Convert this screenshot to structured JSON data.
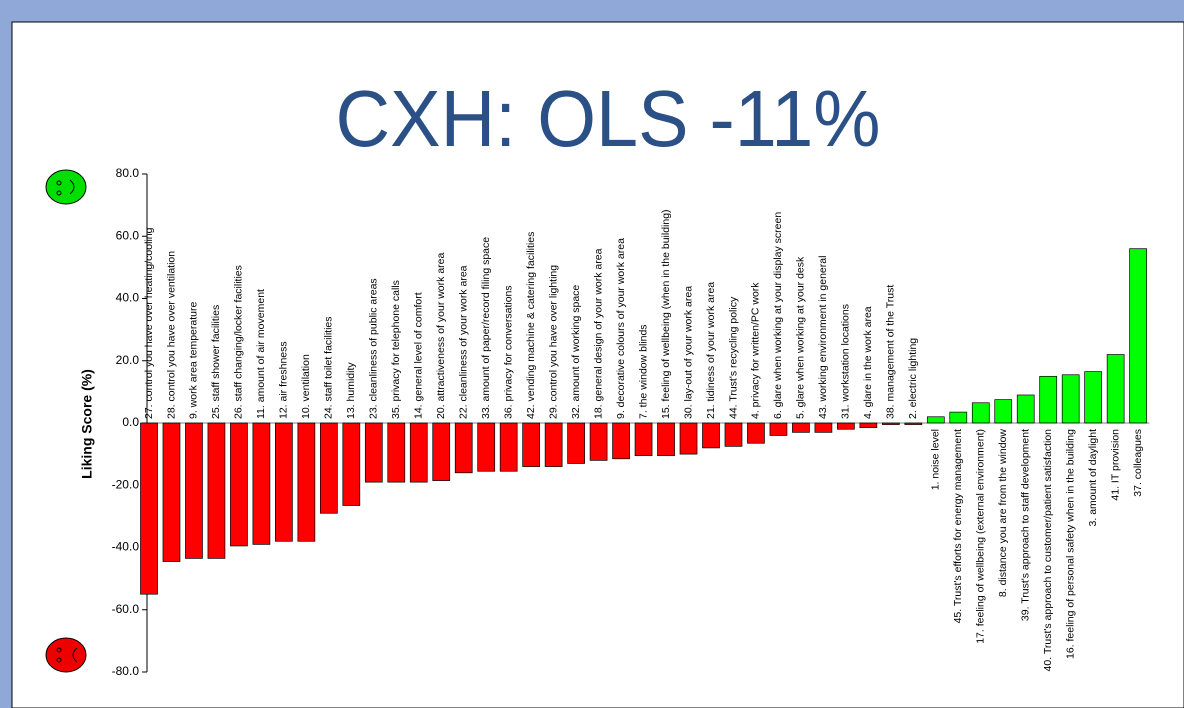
{
  "chart_data": {
    "type": "bar",
    "title": "CXH: OLS -11%",
    "ylabel": "Liking Score (%)",
    "categories": [
      "27. control you have over heating/cooling",
      "28. control you have over ventilation",
      "9. work area temperature",
      "25. staff shower facilities",
      "26. staff changing/locker facilities",
      "11. amount of air movement",
      "12. air freshness",
      "10. ventilation",
      "24. staff toilet facilities",
      "13. humidity",
      "23. cleanliness of public areas",
      "35. privacy for telephone calls",
      "14. general level of comfort",
      "20. attractiveness of your work area",
      "22. cleanliness of your work area",
      "33. amount of paper/record filing space",
      "36. privacy for conversations",
      "42. vending machine & catering facilities",
      "29. control you have over lighting",
      "32. amount of working space",
      "18. general design of your work area",
      "9. decorative colours of your work area",
      "7. the window blinds",
      "15. feeling of wellbeing (when in the building)",
      "30. lay-out of your work area",
      "21. tidiness of your work area",
      "44. Trust's recycling policy",
      "4. privacy for written/PC work",
      "6. glare when working at your display screen",
      "5. glare when working at your desk",
      "43. working environment in general",
      "31. workstation locations",
      "4. glare in the work area",
      "38. management of the Trust",
      "2. electric lighting",
      "1. noise level",
      "45. Trust's efforts for energy management",
      "17. feeling of wellbeing (external environment)",
      "8. distance you are from the window",
      "39. Trust's approach to staff development",
      "40. Trust's approach to customer/patient satisfaction",
      "16. feeling of personal safety when in the building",
      "3. amount of daylight",
      "41. IT provision",
      "37. colleagues"
    ],
    "values": [
      -55,
      -44.5,
      -43.5,
      -43.5,
      -39.5,
      -39,
      -38,
      -38,
      -29,
      -26.5,
      -19,
      -19,
      -19,
      -18.5,
      -16,
      -15.5,
      -15.5,
      -14,
      -14,
      -13,
      -12,
      -11.5,
      -10.5,
      -10.5,
      -10,
      -8,
      -7.5,
      -6.5,
      -4,
      -3,
      -3,
      -2,
      -1.5,
      -0.5,
      -0.5,
      2,
      3.5,
      6.5,
      7.5,
      9,
      15,
      15.5,
      16.5,
      22,
      56
    ],
    "positive_color": "#00ff00",
    "negative_color": "#ff0000",
    "ylim": [
      -80,
      80
    ],
    "yticks": [
      {
        "value": -80,
        "label": "-80.0"
      },
      {
        "value": -60,
        "label": "-60.0"
      },
      {
        "value": -40,
        "label": "-40.0"
      },
      {
        "value": -20,
        "label": "-20.0"
      },
      {
        "value": 0,
        "label": "0.0"
      },
      {
        "value": 20,
        "label": "20.0"
      },
      {
        "value": 40,
        "label": "40.0"
      },
      {
        "value": 60,
        "label": "60.0"
      },
      {
        "value": 80,
        "label": "80.0"
      }
    ]
  }
}
